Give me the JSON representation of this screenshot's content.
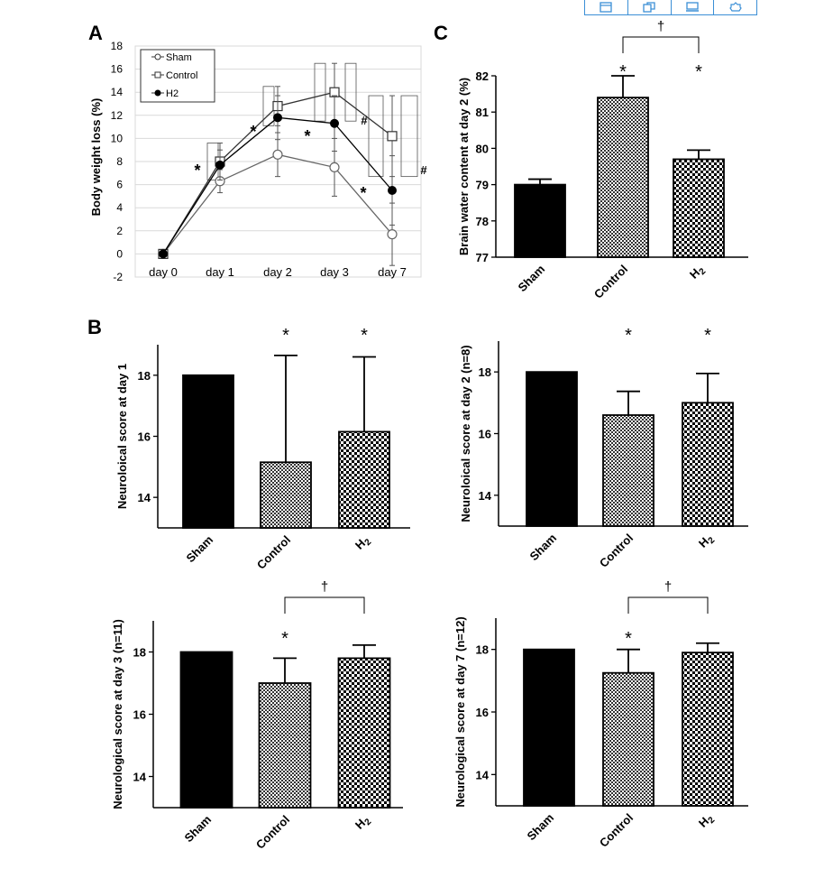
{
  "toolbar": {
    "icons": [
      "image-icon",
      "copy-icon",
      "monitor-icon",
      "settings-icon"
    ],
    "color": "#3b8fd6"
  },
  "panel_labels": {
    "a": "A",
    "b": "B",
    "c": "C"
  },
  "chart_data": [
    {
      "id": "A",
      "type": "line",
      "title": "",
      "xlabel": "",
      "ylabel": "Body weight loss (%)",
      "categories": [
        "day 0",
        "day 1",
        "day 2",
        "day 3",
        "day 7"
      ],
      "ylim": [
        -2,
        18
      ],
      "yticks": [
        -2,
        0,
        2,
        4,
        6,
        8,
        10,
        12,
        14,
        16,
        18
      ],
      "grid": true,
      "legend": "top-left",
      "series": [
        {
          "name": "Sham",
          "marker": "circle-open",
          "values": [
            0,
            6.3,
            8.6,
            7.5,
            1.7
          ],
          "err": [
            0,
            1.0,
            1.9,
            2.5,
            2.7
          ]
        },
        {
          "name": "Control",
          "marker": "square-open",
          "values": [
            0,
            8.0,
            12.8,
            14.0,
            10.2
          ],
          "err": [
            0,
            1.6,
            1.7,
            2.5,
            3.5
          ]
        },
        {
          "name": "H2",
          "marker": "circle-filled",
          "values": [
            0,
            7.7,
            11.8,
            11.3,
            5.5
          ],
          "err": [
            0,
            1.3,
            1.9,
            2.4,
            3.0
          ]
        }
      ],
      "annotations": [
        "*",
        "*",
        "*",
        "*",
        "#",
        "#"
      ]
    },
    {
      "id": "C",
      "type": "bar",
      "title": "",
      "ylabel": "Brain water content at day 2 (%)",
      "categories": [
        "Sham",
        "Control",
        "H2"
      ],
      "values": [
        79.0,
        81.4,
        79.7
      ],
      "err": [
        0.15,
        0.6,
        0.25
      ],
      "ylim": [
        77,
        82
      ],
      "yticks": [
        77,
        78,
        79,
        80,
        81,
        82
      ],
      "markers": [
        "",
        "*",
        "*"
      ],
      "bracket": {
        "from": "Control",
        "to": "H2",
        "label": "†"
      }
    },
    {
      "id": "B1",
      "type": "bar",
      "title": "",
      "ylabel": "Neuroloical score at day 1",
      "categories": [
        "Sham",
        "Control",
        "H2"
      ],
      "values": [
        18.0,
        15.15,
        16.15
      ],
      "err": [
        0,
        3.5,
        2.45
      ],
      "ylim": [
        13,
        19
      ],
      "yticks": [
        14,
        16,
        18
      ],
      "markers": [
        "",
        "*",
        "*"
      ]
    },
    {
      "id": "B2",
      "type": "bar",
      "title": "",
      "ylabel": "Neuroloical score at day 2 (n=8)",
      "categories": [
        "Sham",
        "Control",
        "H2"
      ],
      "values": [
        18.0,
        16.6,
        17.0
      ],
      "err": [
        0,
        0.77,
        0.95
      ],
      "ylim": [
        13,
        19
      ],
      "yticks": [
        14,
        16,
        18
      ],
      "markers": [
        "",
        "*",
        "*"
      ]
    },
    {
      "id": "B3",
      "type": "bar",
      "title": "",
      "ylabel": "Neurological score at day 3 (n=11)",
      "categories": [
        "Sham",
        "Control",
        "H2"
      ],
      "values": [
        18.0,
        17.0,
        17.8
      ],
      "err": [
        0,
        0.8,
        0.42
      ],
      "ylim": [
        13,
        19
      ],
      "yticks": [
        14,
        16,
        18
      ],
      "markers": [
        "",
        "*",
        ""
      ],
      "bracket": {
        "from": "Control",
        "to": "H2",
        "label": "†"
      }
    },
    {
      "id": "B4",
      "type": "bar",
      "title": "",
      "ylabel": "Neurological score at day 7 (n=12)",
      "categories": [
        "Sham",
        "Control",
        "H2"
      ],
      "values": [
        18.0,
        17.25,
        17.9
      ],
      "err": [
        0,
        0.75,
        0.3
      ],
      "ylim": [
        13,
        19
      ],
      "yticks": [
        14,
        16,
        18
      ],
      "markers": [
        "",
        "*",
        ""
      ],
      "bracket": {
        "from": "Control",
        "to": "H2",
        "label": "†"
      }
    }
  ]
}
